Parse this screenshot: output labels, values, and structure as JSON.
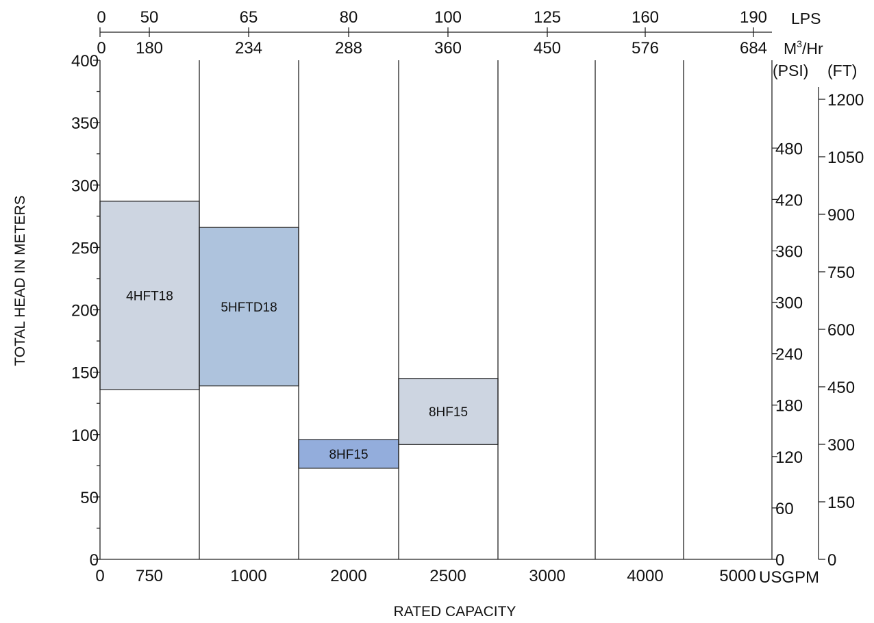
{
  "chart_data": {
    "type": "bar",
    "xlabel": "RATED CAPACITY",
    "ylabel": "TOTAL HEAD IN METERS",
    "ylim": [
      0,
      400
    ],
    "y_ticks": [
      "400",
      "350",
      "300",
      "250",
      "200",
      "150",
      "100",
      "50",
      "0"
    ],
    "x_unit": "USGPM",
    "x_ticks": [
      "0",
      "750",
      "1000",
      "2000",
      "2500",
      "3000",
      "4000",
      "5000"
    ],
    "top_axis_lps": {
      "unit": "LPS",
      "ticks": [
        "0",
        "50",
        "65",
        "80",
        "100",
        "125",
        "160",
        "190"
      ]
    },
    "top_axis_m3hr": {
      "unit_base": "M",
      "unit_sup": "3",
      "unit_suffix": "/Hr",
      "ticks": [
        "0",
        "180",
        "234",
        "288",
        "360",
        "450",
        "576",
        "684"
      ]
    },
    "right_axis_psi": {
      "unit": "(PSI)",
      "ticks": [
        "480",
        "420",
        "360",
        "300",
        "240",
        "180",
        "120",
        "60",
        "0"
      ]
    },
    "right_axis_ft": {
      "unit": "(FT)",
      "ticks": [
        "1200",
        "1050",
        "900",
        "750",
        "600",
        "450",
        "300",
        "150",
        "0"
      ]
    },
    "columns": 7,
    "bands": [
      {
        "label": "4HFT18",
        "column": 0,
        "head_min": 136,
        "head_max": 287,
        "color": "#cdd5e1"
      },
      {
        "label": "5HFTD18",
        "column": 1,
        "head_min": 139,
        "head_max": 266,
        "color": "#aec3dd"
      },
      {
        "label": "8HF15",
        "column": 2,
        "head_min": 73,
        "head_max": 96,
        "color": "#93addc"
      },
      {
        "label": "8HF15",
        "column": 3,
        "head_min": 92,
        "head_max": 145,
        "color": "#cdd5e1"
      }
    ],
    "grid": true,
    "legend": "none"
  }
}
